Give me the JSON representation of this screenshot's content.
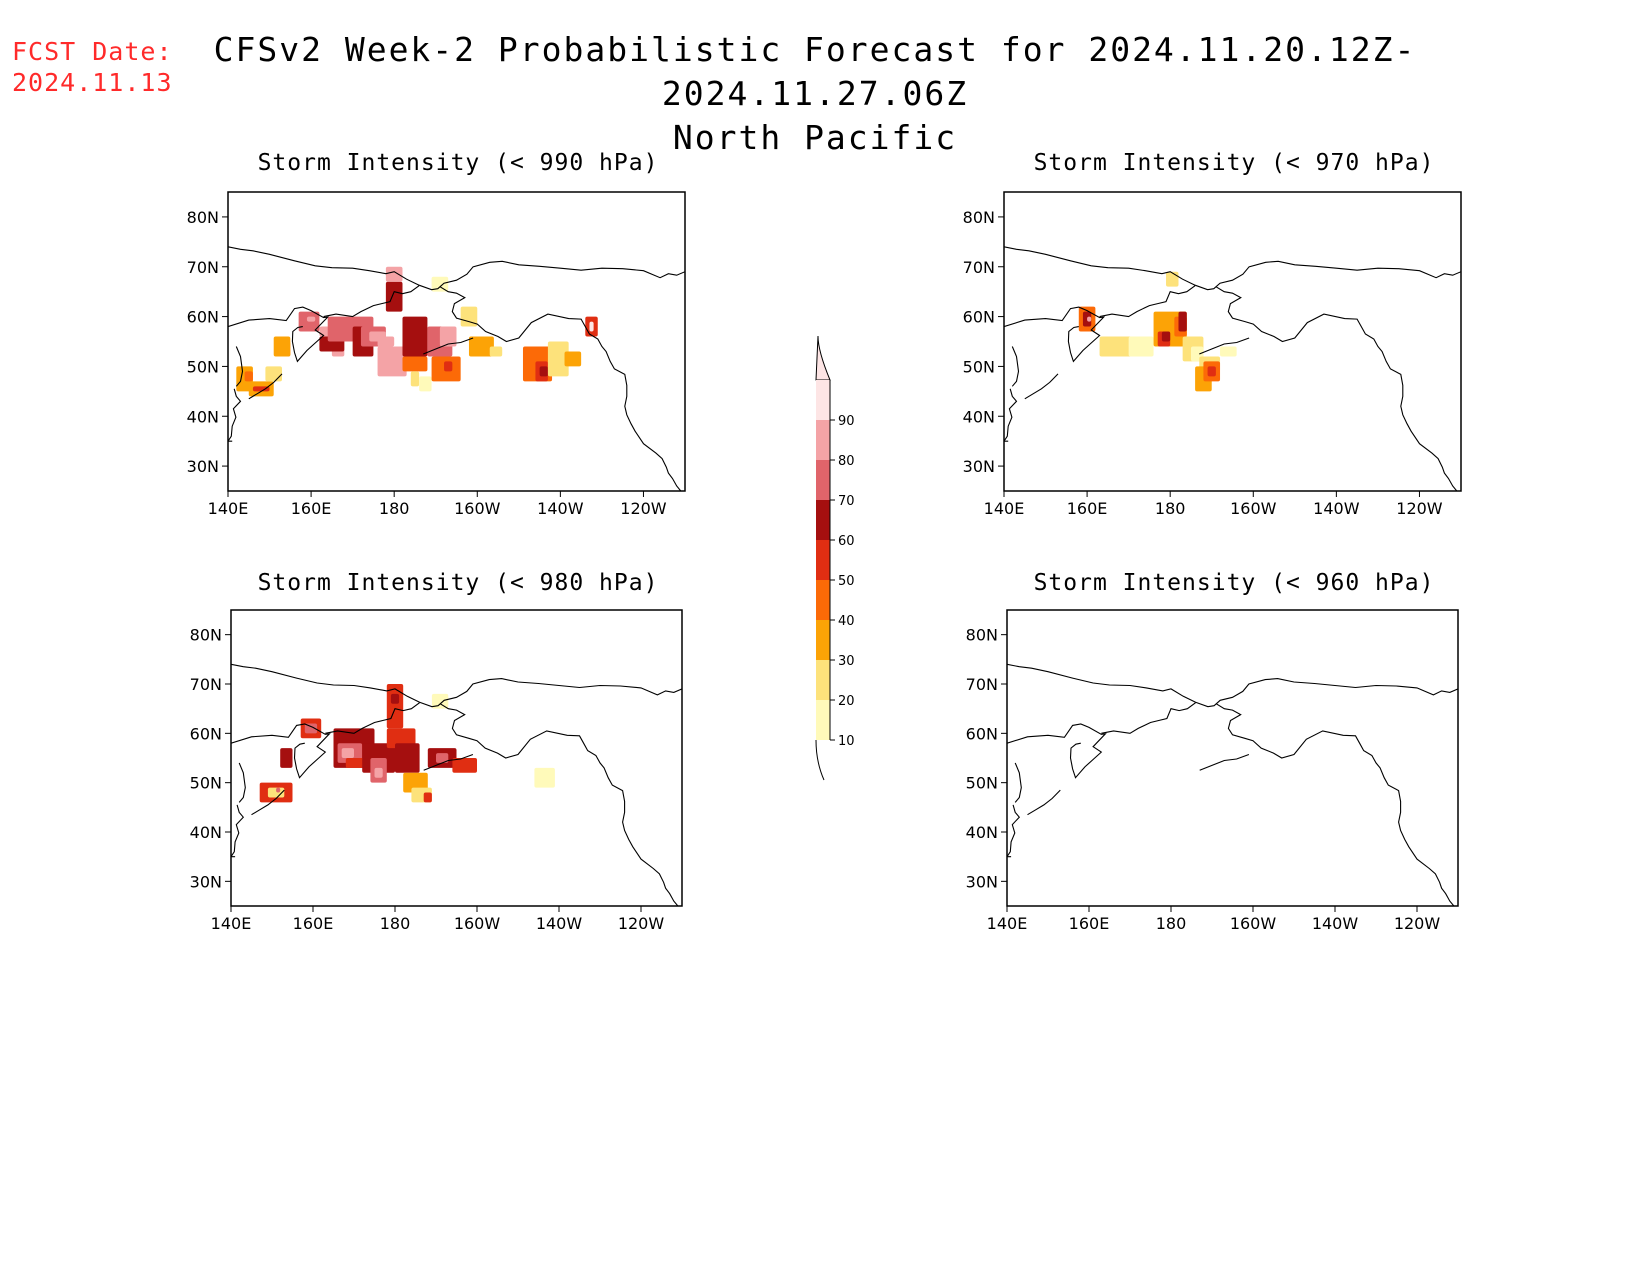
{
  "header": {
    "fcst_label": "FCST Date:",
    "fcst_date": "2024.11.13",
    "title_line1": "CFSv2 Week-2 Probabilistic Forecast for 2024.11.20.12Z-2024.11.27.06Z",
    "title_line2": "North Pacific"
  },
  "axes": {
    "lat_labels": [
      "80N",
      "70N",
      "60N",
      "50N",
      "40N",
      "30N"
    ],
    "lon_labels": [
      "140E",
      "160E",
      "180",
      "160W",
      "140W",
      "120W"
    ]
  },
  "panels": [
    {
      "title": "Storm Intensity (< 990 hPa)"
    },
    {
      "title": "Storm Intensity (< 970 hPa)"
    },
    {
      "title": "Storm Intensity (< 980 hPa)"
    },
    {
      "title": "Storm Intensity (< 960 hPa)"
    }
  ],
  "colorbar": {
    "labels": [
      "90",
      "80",
      "70",
      "60",
      "50",
      "40",
      "30",
      "20",
      "10"
    ],
    "colors": [
      "#fde5e5",
      "#f4a3a6",
      "#e0646a",
      "#a50f0f",
      "#e02e12",
      "#fc6a07",
      "#fca306",
      "#fde27b",
      "#fffaba"
    ]
  }
}
